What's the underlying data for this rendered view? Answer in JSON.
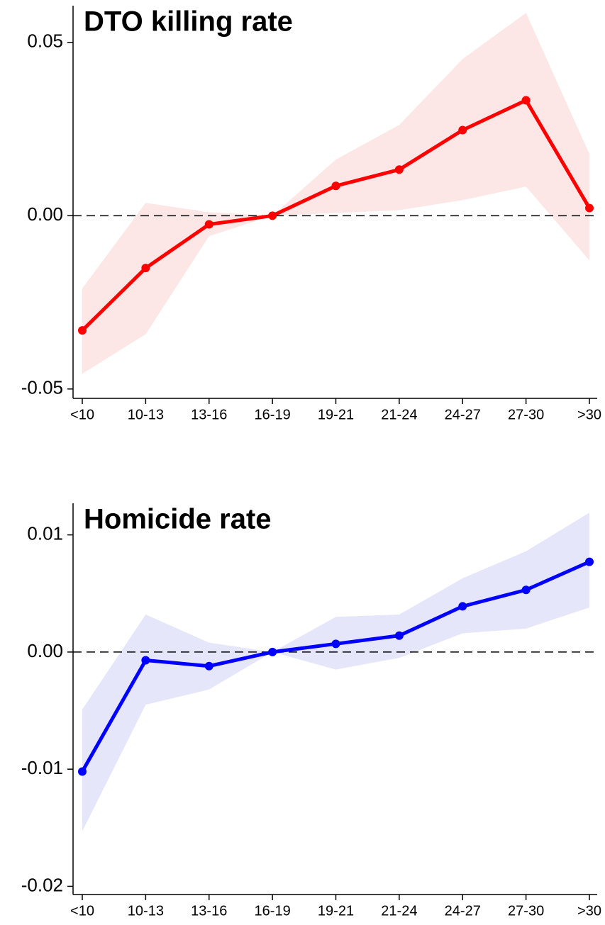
{
  "chart_data": [
    {
      "type": "line",
      "title": "DTO killing rate",
      "categories": [
        "<10",
        "10-13",
        "13-16",
        "16-19",
        "19-21",
        "21-24",
        "24-27",
        "27-30",
        ">30"
      ],
      "values": [
        -0.0331,
        -0.0151,
        -0.0025,
        0,
        0.0086,
        0.0133,
        0.0247,
        0.0333,
        0.0022
      ],
      "upper": [
        -0.021,
        0.0037,
        0.001,
        0,
        0.0162,
        0.0262,
        0.0452,
        0.0585,
        0.0178
      ],
      "lower": [
        -0.0456,
        -0.0342,
        -0.0059,
        0,
        0.0008,
        0.0016,
        0.0045,
        0.0084,
        -0.0129
      ],
      "color": "#ff0000",
      "band_color": "#fde6e6",
      "ylim": [
        -0.0527,
        0.0606
      ],
      "yticks": [
        -0.05,
        {
          "value": 0,
          "label": "0.00"
        },
        0.05
      ],
      "hline": 0
    },
    {
      "type": "line",
      "title": "Homicide rate",
      "categories": [
        "<10",
        "10-13",
        "13-16",
        "16-19",
        "19-21",
        "21-24",
        "24-27",
        "27-30",
        ">30"
      ],
      "values": [
        -0.0102,
        -0.0007,
        -0.0012,
        0,
        0.0007,
        0.0014,
        0.0039,
        0.0053,
        0.0077
      ],
      "upper": [
        -0.0049,
        0.0032,
        0.0008,
        0,
        0.003,
        0.0032,
        0.0063,
        0.0086,
        0.0119
      ],
      "lower": [
        -0.0153,
        -0.0045,
        -0.0032,
        0,
        -0.0015,
        -0.0005,
        0.0016,
        0.002,
        0.0038
      ],
      "color": "#0000ff",
      "band_color": "#e6e6fb",
      "ylim": [
        -0.0207,
        0.0127
      ],
      "yticks": [
        -0.02,
        -0.01,
        {
          "value": 0,
          "label": "0.00"
        },
        0.01
      ],
      "hline": 0
    }
  ]
}
